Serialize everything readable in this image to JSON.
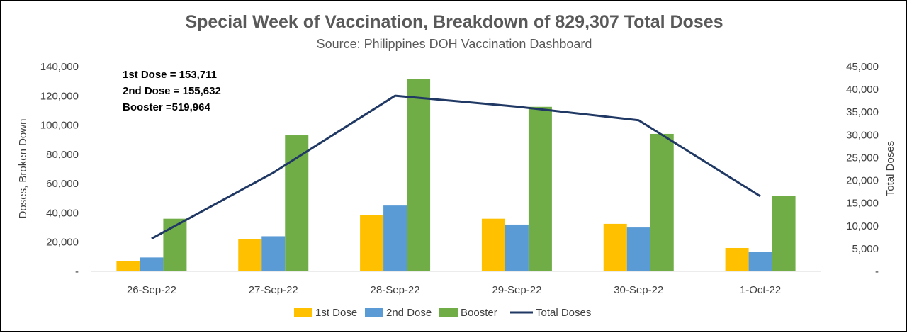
{
  "chart_data": {
    "type": "bar",
    "title": "Special Week of Vaccination, Breakdown of 829,307 Total Doses",
    "subtitle": "Source: Philippines DOH Vaccination Dashboard",
    "categories": [
      "26-Sep-22",
      "27-Sep-22",
      "28-Sep-22",
      "29-Sep-22",
      "30-Sep-22",
      "1-Oct-22"
    ],
    "series": [
      {
        "name": "1st Dose",
        "type": "bar",
        "axis": "left",
        "color": "#FFC000",
        "values": [
          7000,
          22000,
          38500,
          36000,
          32500,
          16000
        ]
      },
      {
        "name": "2nd Dose",
        "type": "bar",
        "axis": "left",
        "color": "#5B9BD5",
        "values": [
          9500,
          24000,
          45000,
          32000,
          30000,
          13500
        ]
      },
      {
        "name": "Booster",
        "type": "bar",
        "axis": "left",
        "color": "#70AD47",
        "values": [
          36000,
          93000,
          131500,
          112500,
          94000,
          51500
        ]
      },
      {
        "name": "Total Doses",
        "type": "line",
        "axis": "right",
        "color": "#203864",
        "values": [
          7200,
          21700,
          38600,
          36200,
          33200,
          16500
        ]
      }
    ],
    "ylabel": "Doses, Broken Down",
    "y2label": "Total Doses",
    "ylim": [
      0,
      140000
    ],
    "y2lim": [
      0,
      45000
    ],
    "yticks": [
      {
        "value": 0,
        "label": "-"
      },
      {
        "value": 20000,
        "label": "20,000"
      },
      {
        "value": 40000,
        "label": "40,000"
      },
      {
        "value": 60000,
        "label": "60,000"
      },
      {
        "value": 80000,
        "label": "80,000"
      },
      {
        "value": 100000,
        "label": "100,000"
      },
      {
        "value": 120000,
        "label": "120,000"
      },
      {
        "value": 140000,
        "label": "140,000"
      }
    ],
    "y2ticks": [
      {
        "value": 0,
        "label": "-"
      },
      {
        "value": 5000,
        "label": "5,000"
      },
      {
        "value": 10000,
        "label": "10,000"
      },
      {
        "value": 15000,
        "label": "15,000"
      },
      {
        "value": 20000,
        "label": "20,000"
      },
      {
        "value": 25000,
        "label": "25,000"
      },
      {
        "value": 30000,
        "label": "30,000"
      },
      {
        "value": 35000,
        "label": "35,000"
      },
      {
        "value": 40000,
        "label": "40,000"
      },
      {
        "value": 45000,
        "label": "45,000"
      }
    ],
    "annotations": [
      "1st Dose = 153,711",
      "2nd Dose = 155,632",
      "Booster  =519,964"
    ],
    "legend_position": "bottom",
    "grid": false
  }
}
